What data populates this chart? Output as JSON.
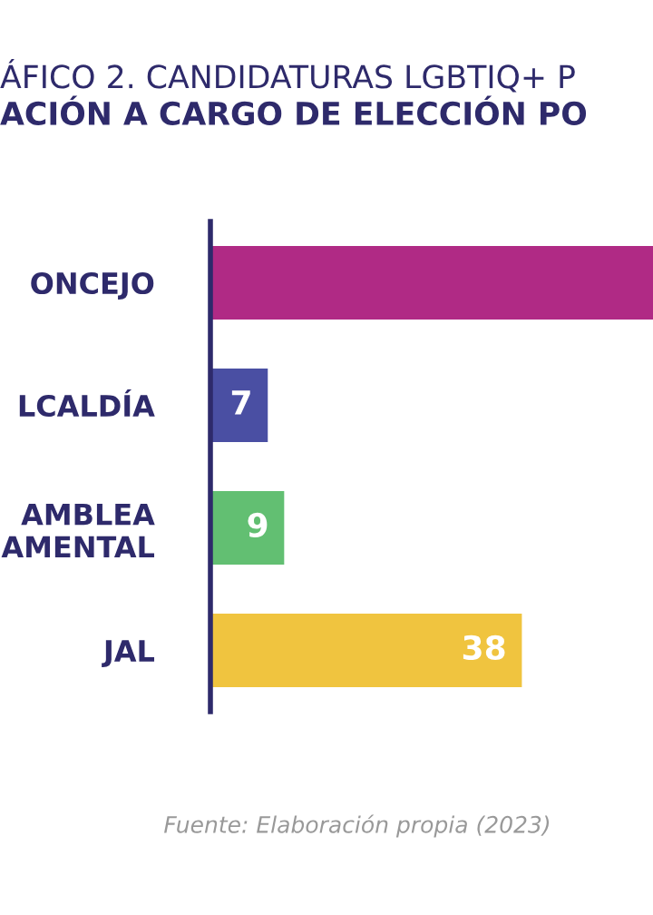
{
  "chart_data": {
    "type": "bar",
    "orientation": "horizontal",
    "title": "ÁFICO 2. CANDIDATURAS LGBTIQ+ P",
    "subtitle": "ACIÓN A CARGO DE ELECCIÓN PO",
    "categories": [
      "ONCEJO",
      "LCALDÍA",
      "AMBLEA\nAMENTAL",
      "JAL"
    ],
    "values": [
      54,
      7,
      9,
      38
    ],
    "colors": [
      "#b02a85",
      "#4a4fa3",
      "#62bf72",
      "#f0c43f"
    ],
    "value_labels": [
      null,
      "7",
      "9",
      "38"
    ],
    "xlim": [
      0,
      54
    ],
    "tick_labels": "y",
    "grid": false,
    "annotations": [
      "Fuente: Elaboración propia (2023)"
    ]
  }
}
